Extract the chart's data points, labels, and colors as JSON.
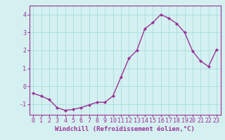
{
  "x": [
    0,
    1,
    2,
    3,
    4,
    5,
    6,
    7,
    8,
    9,
    10,
    11,
    12,
    13,
    14,
    15,
    16,
    17,
    18,
    19,
    20,
    21,
    22,
    23
  ],
  "y": [
    -0.4,
    -0.55,
    -0.75,
    -1.2,
    -1.35,
    -1.3,
    -1.2,
    -1.05,
    -0.9,
    -0.9,
    -0.55,
    0.5,
    1.55,
    2.0,
    3.2,
    3.55,
    4.0,
    3.8,
    3.5,
    3.0,
    1.95,
    1.4,
    1.1,
    2.05
  ],
  "line_color": "#993399",
  "marker": "D",
  "marker_size": 2.0,
  "bg_color": "#d4f0f0",
  "grid_color": "#aadddd",
  "xlabel": "Windchill (Refroidissement éolien,°C)",
  "xlabel_color": "#993399",
  "xlabel_fontsize": 6.5,
  "tick_color": "#993399",
  "tick_fontsize": 6.0,
  "ylim": [
    -1.6,
    4.5
  ],
  "xlim": [
    -0.5,
    23.5
  ],
  "yticks": [
    -1,
    0,
    1,
    2,
    3,
    4
  ],
  "xticks": [
    0,
    1,
    2,
    3,
    4,
    5,
    6,
    7,
    8,
    9,
    10,
    11,
    12,
    13,
    14,
    15,
    16,
    17,
    18,
    19,
    20,
    21,
    22,
    23
  ],
  "spine_color": "#993399",
  "line_width": 1.0
}
